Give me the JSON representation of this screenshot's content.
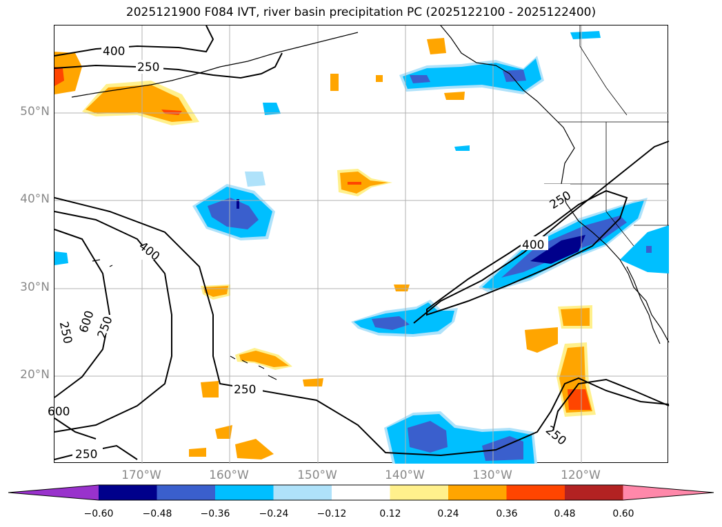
{
  "title": "2025121900 F084 IVT, river basin precipitation PC (2025122100 - 2025122400)",
  "lat_labels": [
    "50°N",
    "40°N",
    "30°N",
    "20°N"
  ],
  "lon_labels": [
    "170°W",
    "160°W",
    "150°W",
    "140°W",
    "130°W",
    "120°W"
  ],
  "colorbar": {
    "ticks": [
      "−0.60",
      "−0.48",
      "−0.36",
      "−0.24",
      "−0.12",
      "0.12",
      "0.24",
      "0.36",
      "0.48",
      "0.60"
    ],
    "colors": [
      "#9932cc",
      "#00008b",
      "#3a5fcd",
      "#00bfff",
      "#afe2fa",
      "#ffffff",
      "#fff08c",
      "#ffa500",
      "#ff4500",
      "#b22222",
      "#ff88aa"
    ]
  },
  "contour_labels": [
    "400",
    "250",
    "250",
    "400",
    "400",
    "250",
    "600",
    "250",
    "600",
    "250",
    "250",
    "250"
  ],
  "map_colors": {
    "coast": "#000000",
    "grid": "#b0b0b0",
    "ivt_contour": "#000000"
  }
}
